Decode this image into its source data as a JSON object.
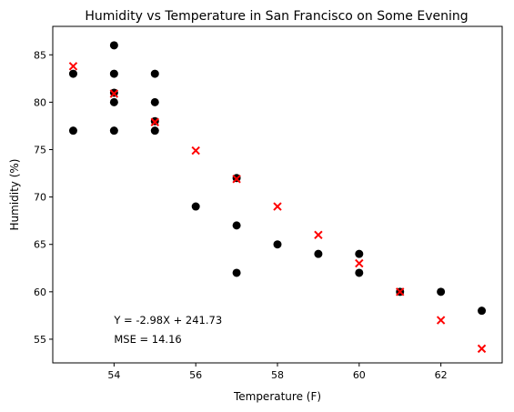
{
  "chart_data": {
    "type": "scatter",
    "title": "Humidity vs Temperature in San Francisco on Some Evening",
    "xlabel": "Temperature (F)",
    "ylabel": "Humidity (%)",
    "xlim": [
      52.5,
      63.5
    ],
    "ylim": [
      52.5,
      88
    ],
    "xticks": [
      54,
      56,
      58,
      60,
      62
    ],
    "yticks": [
      55,
      60,
      65,
      70,
      75,
      80,
      85
    ],
    "grid": false,
    "series": [
      {
        "marker": "circle",
        "color": "#000000",
        "points": [
          {
            "x": 53,
            "y": 83
          },
          {
            "x": 53,
            "y": 77
          },
          {
            "x": 54,
            "y": 86
          },
          {
            "x": 54,
            "y": 83
          },
          {
            "x": 54,
            "y": 81
          },
          {
            "x": 54,
            "y": 80
          },
          {
            "x": 54,
            "y": 77
          },
          {
            "x": 55,
            "y": 83
          },
          {
            "x": 55,
            "y": 80
          },
          {
            "x": 55,
            "y": 78
          },
          {
            "x": 55,
            "y": 77
          },
          {
            "x": 56,
            "y": 69
          },
          {
            "x": 57,
            "y": 72
          },
          {
            "x": 57,
            "y": 67
          },
          {
            "x": 57,
            "y": 62
          },
          {
            "x": 58,
            "y": 65
          },
          {
            "x": 59,
            "y": 64
          },
          {
            "x": 60,
            "y": 64
          },
          {
            "x": 60,
            "y": 62
          },
          {
            "x": 61,
            "y": 60
          },
          {
            "x": 62,
            "y": 60
          },
          {
            "x": 63,
            "y": 58
          }
        ]
      },
      {
        "marker": "x",
        "color": "#ff0000",
        "points": [
          {
            "x": 53,
            "y": 83.8
          },
          {
            "x": 54,
            "y": 80.9
          },
          {
            "x": 55,
            "y": 77.9
          },
          {
            "x": 56,
            "y": 74.9
          },
          {
            "x": 57,
            "y": 71.9
          },
          {
            "x": 58,
            "y": 69.0
          },
          {
            "x": 59,
            "y": 66.0
          },
          {
            "x": 60,
            "y": 63.0
          },
          {
            "x": 61,
            "y": 60.0
          },
          {
            "x": 62,
            "y": 57.0
          },
          {
            "x": 63,
            "y": 54.0
          }
        ]
      }
    ],
    "annotations": [
      {
        "text": "Y = -2.98X + 241.73",
        "x": 54,
        "y": 57
      },
      {
        "text": "MSE = 14.16",
        "x": 54,
        "y": 55
      }
    ]
  }
}
